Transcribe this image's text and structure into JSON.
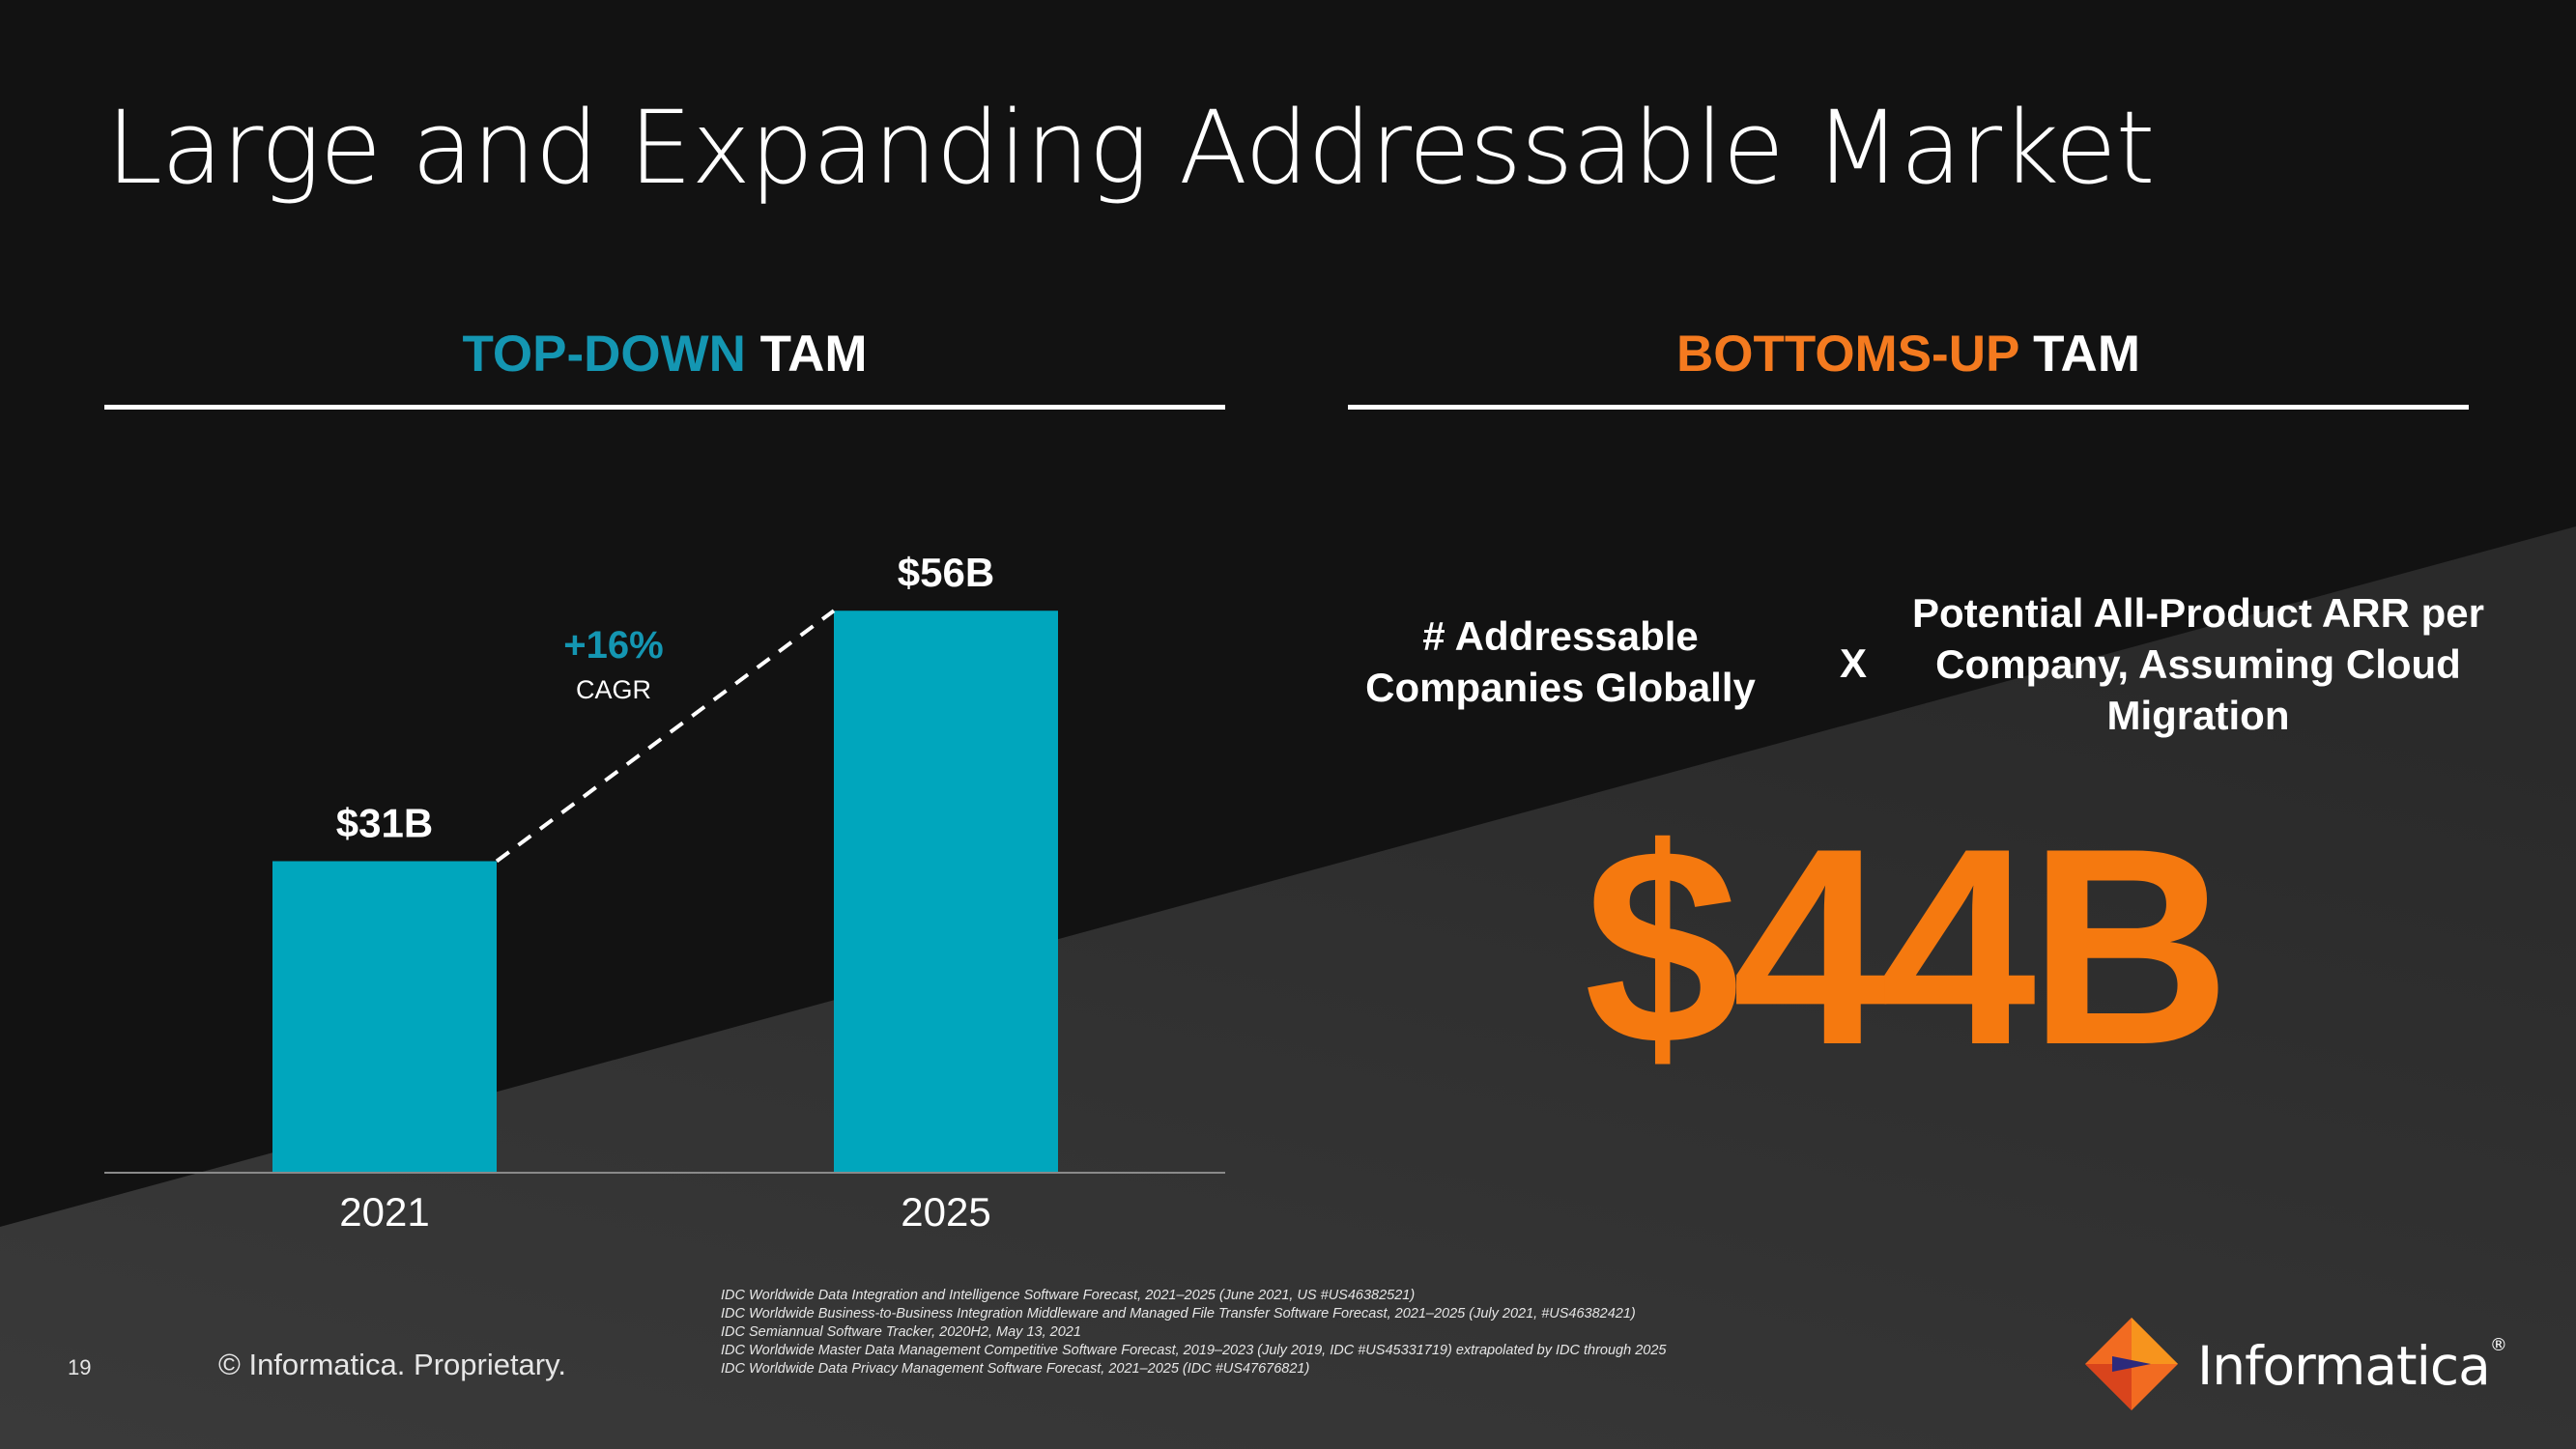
{
  "title": "Large and Expanding Addressable Market",
  "left_section": {
    "heading_accent": "TOP-DOWN",
    "heading_rest": " TAM",
    "cagr_value": "+16%",
    "cagr_label": "CAGR"
  },
  "right_section": {
    "heading_accent": "BOTTOMS-UP",
    "heading_rest": " TAM",
    "factor_a": "# Addressable Companies Globally",
    "operator": "X",
    "factor_b": "Potential All-Product ARR per Company, Assuming Cloud Migration",
    "result": "$44B"
  },
  "chart_data": {
    "type": "bar",
    "categories": [
      "2021",
      "2025"
    ],
    "values": [
      31,
      56
    ],
    "value_labels": [
      "$31B",
      "$56B"
    ],
    "bar_color": "#00a6bd",
    "ylim": [
      0,
      62
    ],
    "annotation": "+16% CAGR"
  },
  "footer": {
    "page_number": "19",
    "copyright": "© Informatica. Proprietary.",
    "sources": [
      "IDC Worldwide Data Integration and Intelligence Software Forecast, 2021–2025 (June 2021, US #US46382521)",
      "IDC Worldwide Business-to-Business Integration Middleware and Managed File Transfer Software Forecast, 2021–2025 (July 2021, #US46382421)",
      "IDC Semiannual Software Tracker, 2020H2, May 13, 2021",
      "IDC Worldwide Master Data Management Competitive Software Forecast, 2019–2023 (July 2019, IDC #US45331719) extrapolated by IDC through 2025",
      "IDC Worldwide Data Privacy Management Software Forecast, 2021–2025 (IDC #US47676821)"
    ],
    "logo_text": "Informatica",
    "logo_mark": "®"
  },
  "colors": {
    "teal": "#1496b2",
    "orange": "#f47a1f",
    "bar": "#00a6bd",
    "background": "#121212"
  }
}
